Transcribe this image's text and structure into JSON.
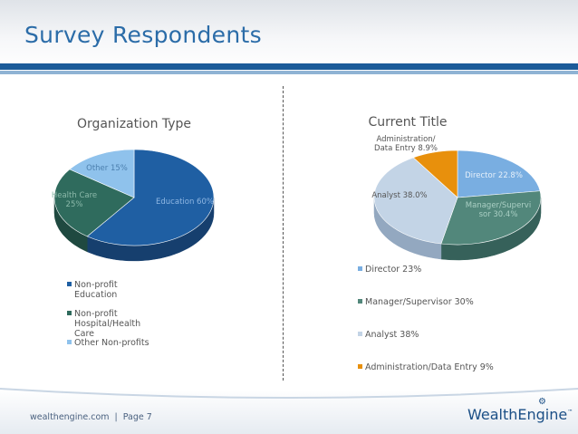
{
  "header": {
    "title": "Survey Respondents"
  },
  "footer": {
    "site": "wealthengine.com",
    "separator": "|",
    "page": "Page 7",
    "logo_text": "WealthEngine",
    "logo_tm": "™"
  },
  "colors": {
    "title_blue": "#2b6ca8",
    "band_dark": "#1b5b99",
    "band_light": "#8fb3d4"
  },
  "chart_data": [
    {
      "type": "pie",
      "title": "Organization Type",
      "slices": [
        {
          "legend": [
            "Non-profit",
            "Education"
          ],
          "label": "Education 60%",
          "value": 60,
          "color": "#1f5fa3",
          "dark": "#163f6e",
          "label_color": "#8fb7e3"
        },
        {
          "legend": [
            "Non-profit",
            "Hospital/Health",
            "Care"
          ],
          "label": [
            "Health Care",
            "25%"
          ],
          "value": 25,
          "color": "#2f6b5d",
          "dark": "#1f4940",
          "label_color": "#8cb9aa"
        },
        {
          "legend": [
            "Other Non-profits"
          ],
          "label": "Other 15%",
          "value": 15,
          "color": "#8fc2ec",
          "dark": "#5f94c2",
          "label_color": "#4b7fae"
        }
      ]
    },
    {
      "type": "pie",
      "title": "Current Title",
      "slices": [
        {
          "legend": [
            "Director 23%"
          ],
          "label": "Director 22.8%",
          "value": 22.8,
          "color": "#79aee1",
          "dark": "#4f80b2",
          "label_color": "#e6f0fa"
        },
        {
          "legend": [
            "Manager/Supervisor 30%"
          ],
          "label": [
            "Manager/Supervi",
            "sor 30.4%"
          ],
          "value": 30.4,
          "color": "#52877b",
          "dark": "#36615a",
          "label_color": "#aacfc4"
        },
        {
          "legend": [
            "Analyst 38%"
          ],
          "label": "Analyst 38.0%",
          "value": 38.0,
          "color": "#c3d4e6",
          "dark": "#93a8c0",
          "label_color": "#555555"
        },
        {
          "legend": [
            "Administration/Data Entry 9%"
          ],
          "label": [
            "Administration/",
            "Data Entry 8.9%"
          ],
          "value": 8.9,
          "color": "#e8900c",
          "dark": "#a9650a",
          "label_color": "#555555"
        }
      ]
    }
  ]
}
